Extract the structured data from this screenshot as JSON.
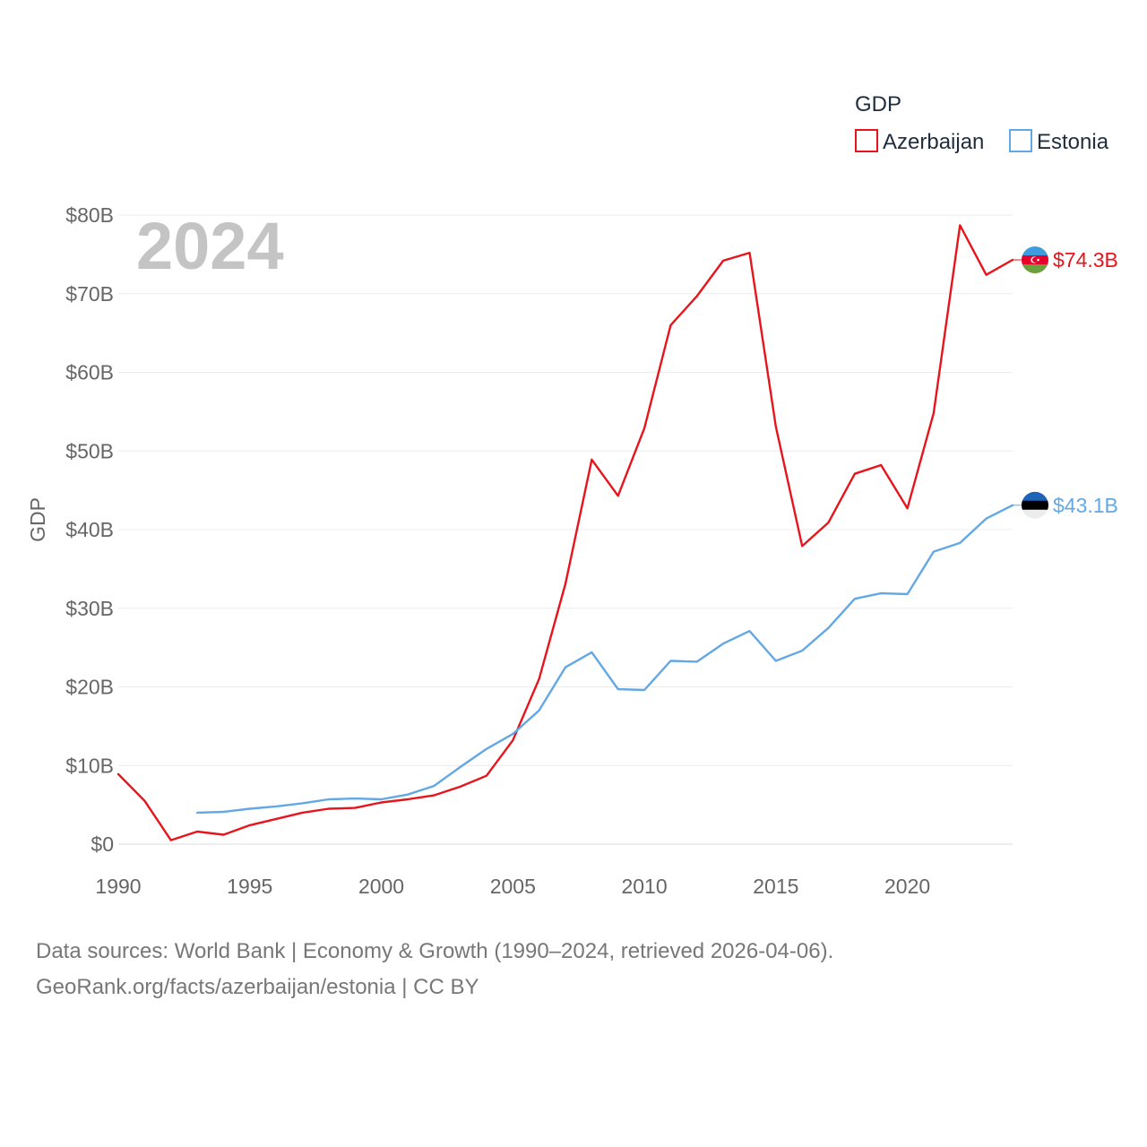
{
  "chart_data": {
    "type": "line",
    "title": "GDP",
    "year_label": "2024",
    "ylabel": "GDP",
    "xlabel": "",
    "xlim": [
      1990,
      2024
    ],
    "ylim": [
      0,
      80
    ],
    "x_ticks": [
      1990,
      1995,
      2000,
      2005,
      2010,
      2015,
      2020
    ],
    "y_ticks": [
      0,
      10,
      20,
      30,
      40,
      50,
      60,
      70,
      80
    ],
    "y_tick_labels": [
      "$0",
      "$10B",
      "$20B",
      "$30B",
      "$40B",
      "$50B",
      "$60B",
      "$70B",
      "$80B"
    ],
    "x_tick_labels": [
      "1990",
      "1995",
      "2000",
      "2005",
      "2010",
      "2015",
      "2020"
    ],
    "grid": true,
    "legend_position": "top-right",
    "series": [
      {
        "name": "Azerbaijan",
        "color": "#e8141c",
        "end_label": "$74.3B",
        "flag": "azerbaijan-flag-icon",
        "points": [
          [
            1990,
            8.9
          ],
          [
            1991,
            5.5
          ],
          [
            1992,
            0.5
          ],
          [
            1993,
            1.6
          ],
          [
            1994,
            1.2
          ],
          [
            1995,
            2.4
          ],
          [
            1996,
            3.2
          ],
          [
            1997,
            4.0
          ],
          [
            1998,
            4.5
          ],
          [
            1999,
            4.6
          ],
          [
            2000,
            5.3
          ],
          [
            2001,
            5.7
          ],
          [
            2002,
            6.2
          ],
          [
            2003,
            7.3
          ],
          [
            2004,
            8.7
          ],
          [
            2005,
            13.2
          ],
          [
            2006,
            21.0
          ],
          [
            2007,
            33.1
          ],
          [
            2008,
            48.9
          ],
          [
            2009,
            44.3
          ],
          [
            2010,
            52.9
          ],
          [
            2011,
            66.0
          ],
          [
            2012,
            69.7
          ],
          [
            2013,
            74.2
          ],
          [
            2014,
            75.2
          ],
          [
            2015,
            53.1
          ],
          [
            2016,
            37.9
          ],
          [
            2017,
            40.9
          ],
          [
            2018,
            47.1
          ],
          [
            2019,
            48.2
          ],
          [
            2020,
            42.7
          ],
          [
            2021,
            54.8
          ],
          [
            2022,
            78.7
          ],
          [
            2023,
            72.4
          ],
          [
            2024,
            74.3
          ]
        ]
      },
      {
        "name": "Estonia",
        "color": "#62a8e5",
        "end_label": "$43.1B",
        "flag": "estonia-flag-icon",
        "points": [
          [
            1993,
            4.0
          ],
          [
            1994,
            4.1
          ],
          [
            1995,
            4.5
          ],
          [
            1996,
            4.8
          ],
          [
            1997,
            5.2
          ],
          [
            1998,
            5.7
          ],
          [
            1999,
            5.8
          ],
          [
            2000,
            5.7
          ],
          [
            2001,
            6.3
          ],
          [
            2002,
            7.4
          ],
          [
            2003,
            9.8
          ],
          [
            2004,
            12.1
          ],
          [
            2005,
            14.0
          ],
          [
            2006,
            17.0
          ],
          [
            2007,
            22.5
          ],
          [
            2008,
            24.4
          ],
          [
            2009,
            19.7
          ],
          [
            2010,
            19.6
          ],
          [
            2011,
            23.3
          ],
          [
            2012,
            23.2
          ],
          [
            2013,
            25.5
          ],
          [
            2014,
            27.1
          ],
          [
            2015,
            23.3
          ],
          [
            2016,
            24.6
          ],
          [
            2017,
            27.5
          ],
          [
            2018,
            31.2
          ],
          [
            2019,
            31.9
          ],
          [
            2020,
            31.8
          ],
          [
            2021,
            37.2
          ],
          [
            2022,
            38.3
          ],
          [
            2023,
            41.4
          ],
          [
            2024,
            43.1
          ]
        ]
      }
    ]
  },
  "footer": {
    "line1": "Data sources: World Bank | Economy & Growth (1990–2024, retrieved 2026-04-06).",
    "line2": "GeoRank.org/facts/azerbaijan/estonia | CC BY"
  }
}
